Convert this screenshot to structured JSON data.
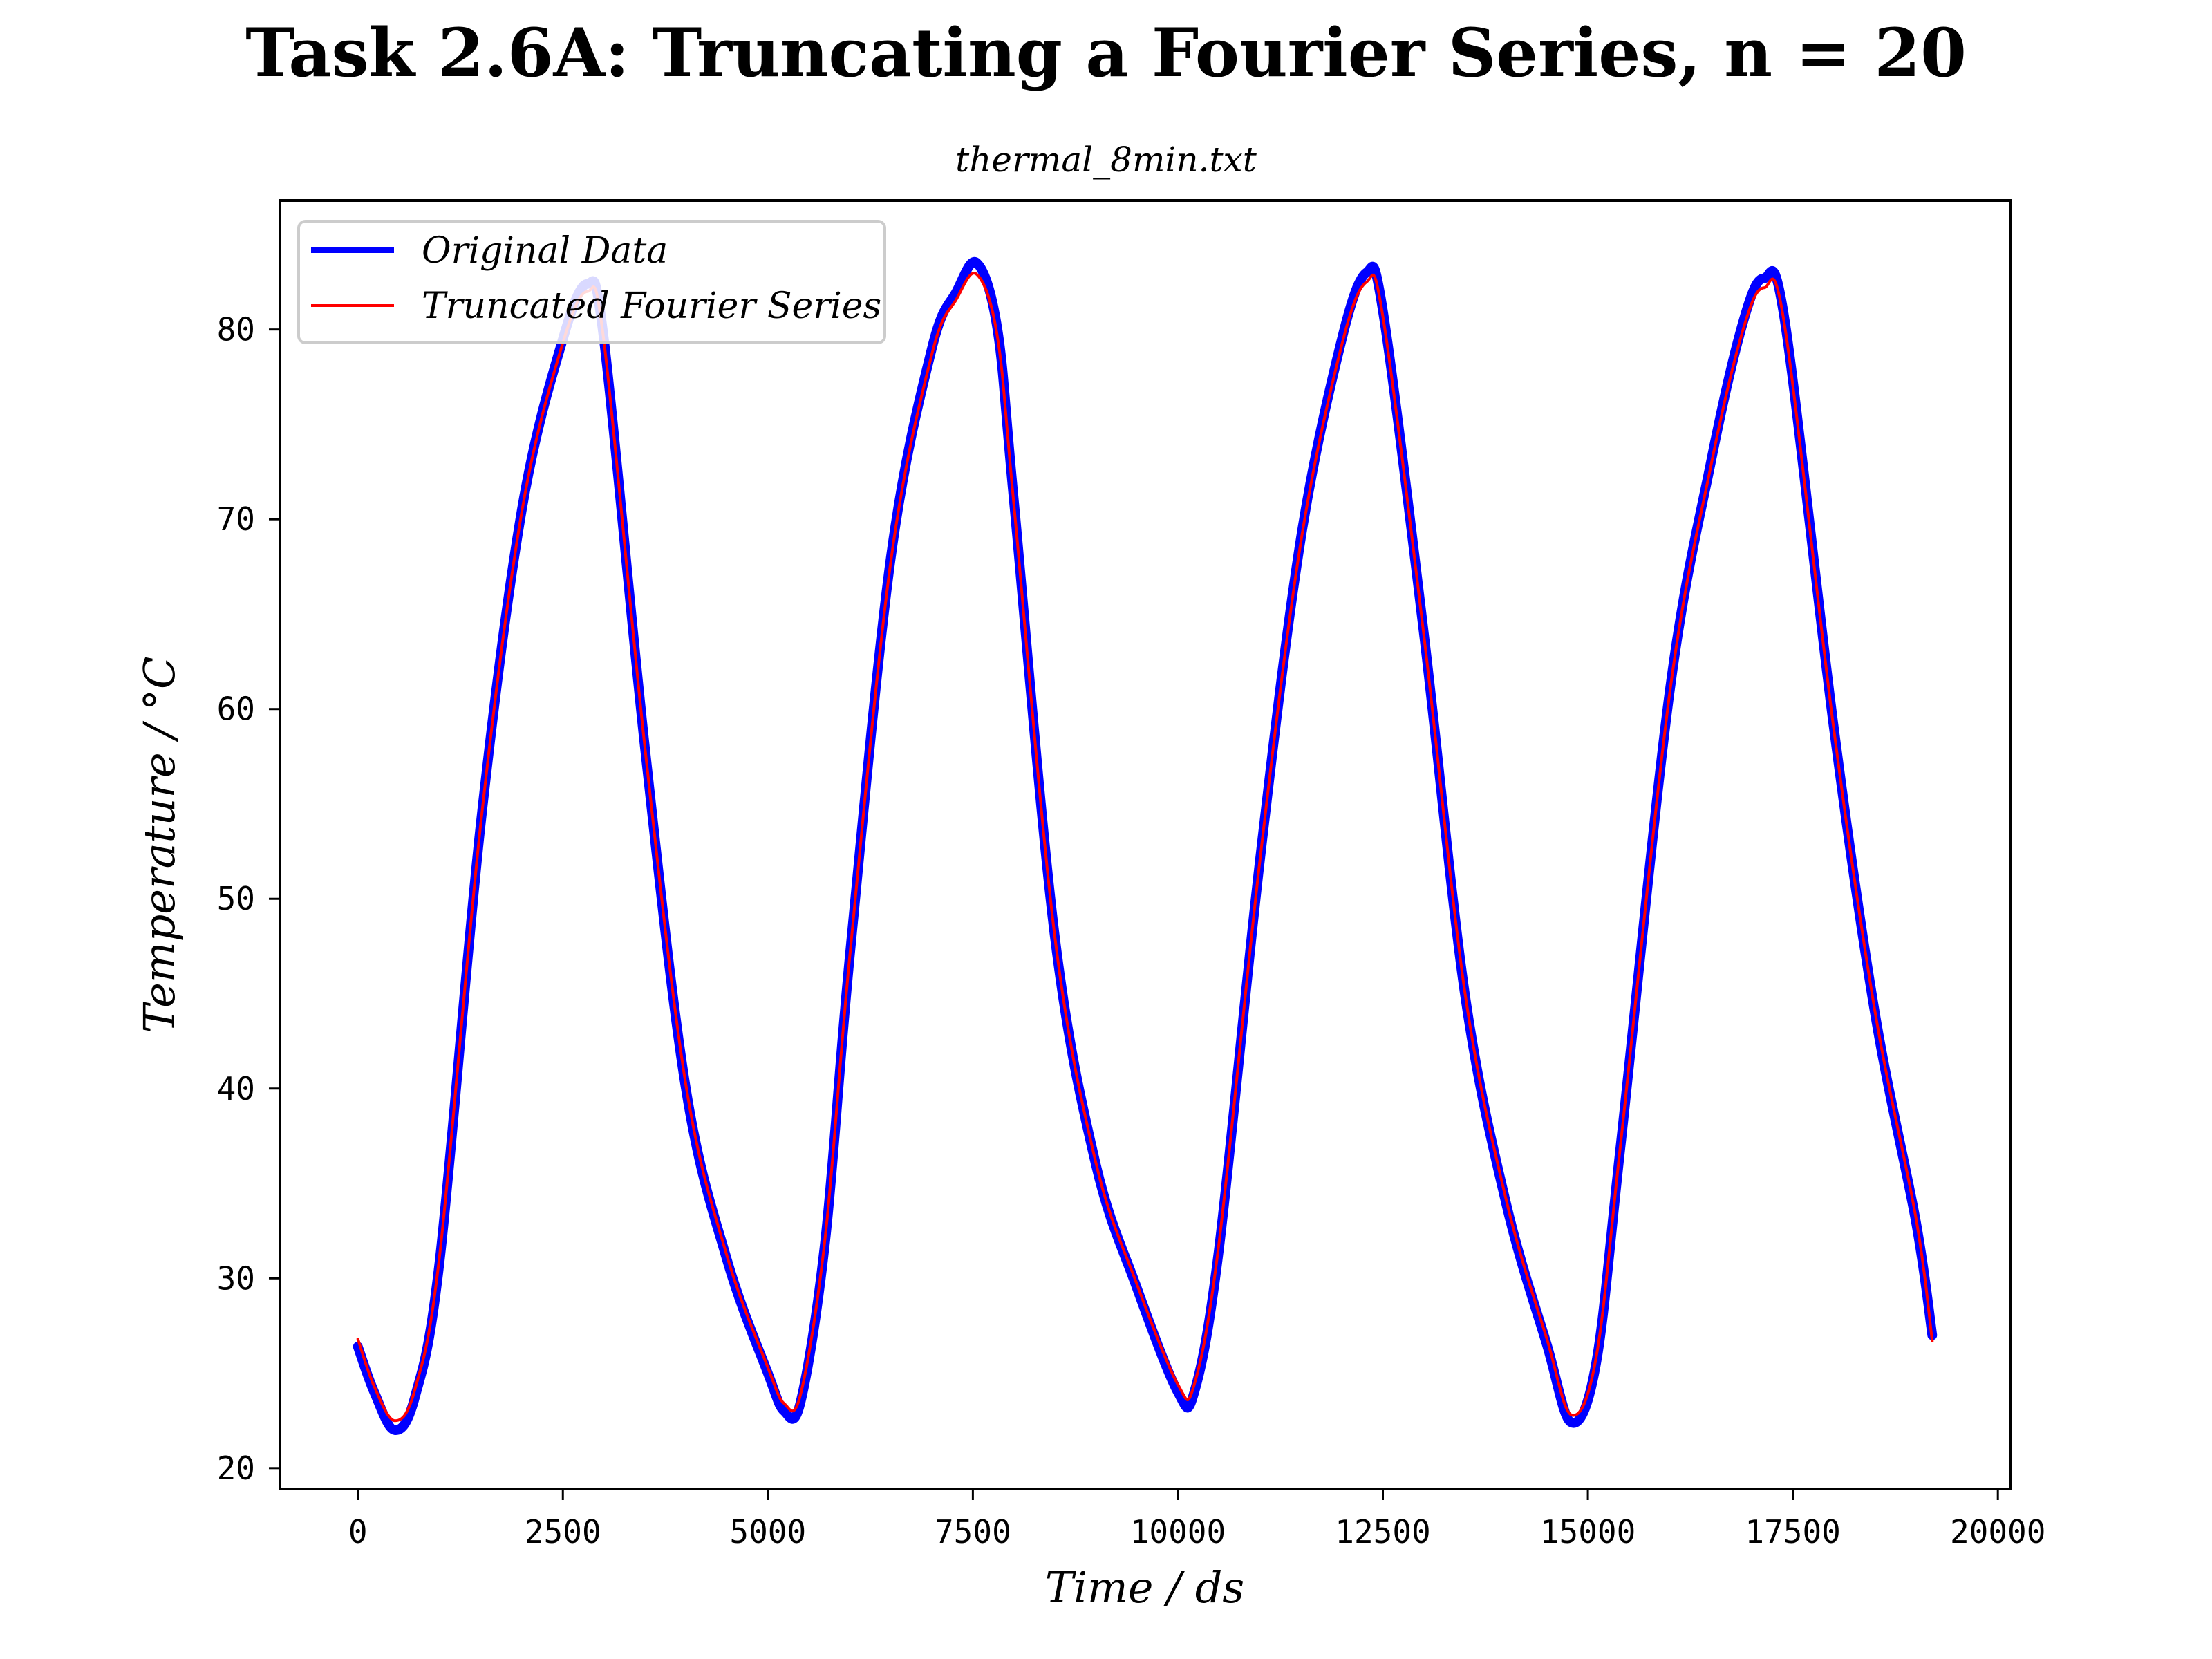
{
  "chart_data": {
    "type": "line",
    "title": "Task 2.6A: Truncating a Fourier Series, n = 20",
    "subtitle": "thermal_8min.txt",
    "xlabel": "Time / ds",
    "ylabel": "Temperature / °C",
    "xlim": [
      -950,
      20150
    ],
    "ylim": [
      18.9,
      86.8
    ],
    "xticks": [
      0,
      2500,
      5000,
      7500,
      10000,
      12500,
      15000,
      17500,
      20000
    ],
    "yticks": [
      20,
      30,
      40,
      50,
      60,
      70,
      80
    ],
    "grid": false,
    "legend_position": "top-left",
    "series": [
      {
        "name": "Original Data",
        "color": "#0000ff",
        "x": [
          0,
          200,
          450,
          700,
          1000,
          1500,
          2000,
          2500,
          2800,
          3000,
          3500,
          4000,
          4500,
          5000,
          5200,
          5400,
          5700,
          6000,
          6500,
          7000,
          7300,
          7550,
          7800,
          8000,
          8500,
          9000,
          9500,
          10000,
          10200,
          10500,
          11000,
          11500,
          12000,
          12300,
          12500,
          13000,
          13500,
          14000,
          14500,
          14800,
          15100,
          15400,
          16000,
          16500,
          16900,
          17150,
          17400,
          18000,
          18500,
          19000,
          19200
        ],
        "values": [
          26.4,
          24.0,
          22.0,
          23.8,
          31.0,
          54.0,
          70.5,
          79.5,
          82.4,
          79.5,
          58.0,
          40.0,
          31.0,
          25.0,
          23.0,
          23.5,
          32.0,
          47.0,
          68.0,
          79.0,
          82.0,
          83.5,
          80.0,
          71.0,
          48.0,
          36.0,
          29.5,
          24.0,
          24.0,
          31.5,
          52.0,
          69.0,
          79.5,
          83.0,
          81.0,
          64.0,
          45.0,
          34.0,
          26.5,
          22.4,
          25.5,
          37.0,
          61.0,
          73.0,
          80.5,
          82.7,
          80.5,
          59.0,
          44.0,
          33.0,
          27.0
        ]
      },
      {
        "name": "Truncated Fourier Series",
        "color": "#ff0000",
        "x": [
          0,
          200,
          450,
          700,
          1000,
          1500,
          2000,
          2500,
          2800,
          3000,
          3500,
          4000,
          4500,
          5000,
          5200,
          5400,
          5700,
          6000,
          6500,
          7000,
          7300,
          7550,
          7800,
          8000,
          8500,
          9000,
          9500,
          10000,
          10200,
          10500,
          11000,
          11500,
          12000,
          12300,
          12500,
          13000,
          13500,
          14000,
          14500,
          14800,
          15100,
          15400,
          16000,
          16500,
          16900,
          17150,
          17400,
          18000,
          18500,
          19000,
          19200
        ],
        "values": [
          26.8,
          24.3,
          22.5,
          24.2,
          31.3,
          54.0,
          70.4,
          79.3,
          82.0,
          79.4,
          58.0,
          40.2,
          31.2,
          25.3,
          23.4,
          23.9,
          32.2,
          47.0,
          67.8,
          78.7,
          81.6,
          82.9,
          79.6,
          70.8,
          48.0,
          36.1,
          29.7,
          24.4,
          24.4,
          31.8,
          52.0,
          68.8,
          79.2,
          82.5,
          80.7,
          63.9,
          45.1,
          34.2,
          26.8,
          22.8,
          25.8,
          37.1,
          60.9,
          72.8,
          80.1,
          82.2,
          80.2,
          58.9,
          44.1,
          33.2,
          26.7
        ]
      }
    ]
  }
}
